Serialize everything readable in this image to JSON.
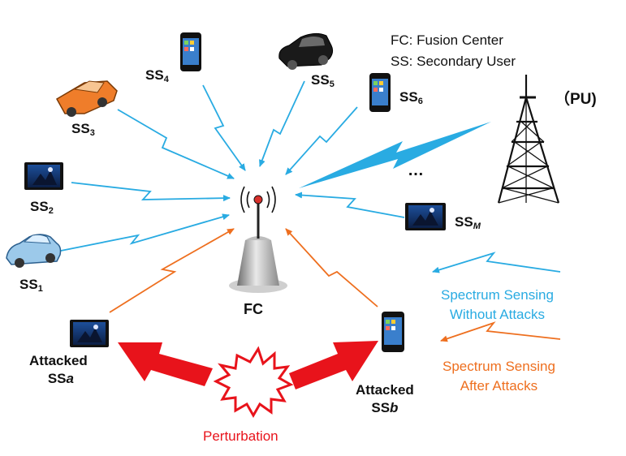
{
  "legend": {
    "fc_line": "FC: Fusion Center",
    "ss_line": "SS: Secondary User"
  },
  "nodes": {
    "pu": "（PU)",
    "fc": "FC",
    "ellipsis": "…",
    "ss1": {
      "base": "SS",
      "sub": "1"
    },
    "ss2": {
      "base": "SS",
      "sub": "2"
    },
    "ss3": {
      "base": "SS",
      "sub": "3"
    },
    "ss4": {
      "base": "SS",
      "sub": "4"
    },
    "ss5": {
      "base": "SS",
      "sub": "5"
    },
    "ss6": {
      "base": "SS",
      "sub": "6"
    },
    "ssm": {
      "base": "SS",
      "sub": "M"
    },
    "attacked_a": {
      "line1": "Attacked",
      "base": "SS",
      "suffix": "a"
    },
    "attacked_b": {
      "line1": "Attacked",
      "base": "SS",
      "suffix": "b"
    }
  },
  "key": {
    "without_attacks_line1": "Spectrum Sensing",
    "without_attacks_line2": "Without Attacks",
    "after_attacks_line1": "Spectrum Sensing",
    "after_attacks_line2": "After Attacks"
  },
  "perturbation": "Perturbation",
  "colors": {
    "blue": "#29abe2",
    "orange": "#ee6f1f",
    "red": "#e8131b",
    "tower": "#111111"
  }
}
